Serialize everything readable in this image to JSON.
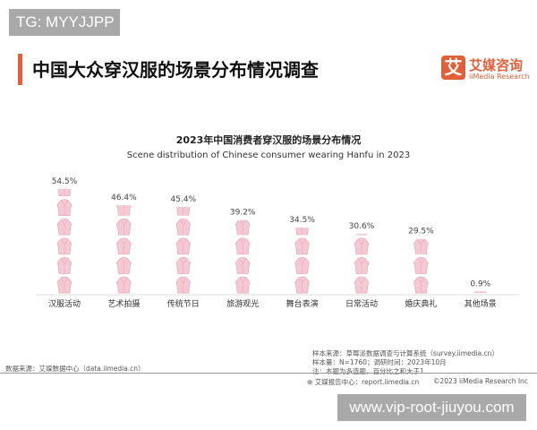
{
  "watermarks": {
    "top": "TG: MYYJJPP",
    "bottom": "www.vip-root-jiuyou.com"
  },
  "header": {
    "title": "中国大众穿汉服的场景分布情况调查",
    "logo_mark": "艾",
    "logo_cn": "艾媒咨询",
    "logo_en": "iiMedia Research"
  },
  "chart_data": {
    "type": "pictograph",
    "title": "2023年中国消费者穿汉服的场景分布情况",
    "subtitle": "Scene distribution of Chinese consumer wearing Hanfu in 2023",
    "unit_per_icon": "10%",
    "icon": "hanfu-robe-icon",
    "color": "#f4c9d3",
    "categories": [
      "汉服活动",
      "艺术拍摄",
      "传统节日",
      "旅游观光",
      "舞台表演",
      "日常活动",
      "婚庆典礼",
      "其他场景"
    ],
    "values": [
      54.5,
      46.4,
      45.4,
      39.2,
      34.5,
      30.6,
      29.5,
      0.9
    ],
    "labels": [
      "54.5%",
      "46.4%",
      "45.4%",
      "39.2%",
      "34.5%",
      "30.6%",
      "29.5%",
      "0.9%"
    ]
  },
  "footer": {
    "data_source": "数据来源：艾媒数据中心（data.iimedia.cn）",
    "sample_source": "样本来源：草莓派数据调查与计算系统（survey.iimedia.cn）",
    "sample_size": "样本量：N=1760；调研时间：2023年10月",
    "note": "注：本题为多选题，百分比之和大于1",
    "report_center": "艾媒报告中心：report.iimedia.cn",
    "copyright": "©2023  iiMedia Research  Inc"
  }
}
